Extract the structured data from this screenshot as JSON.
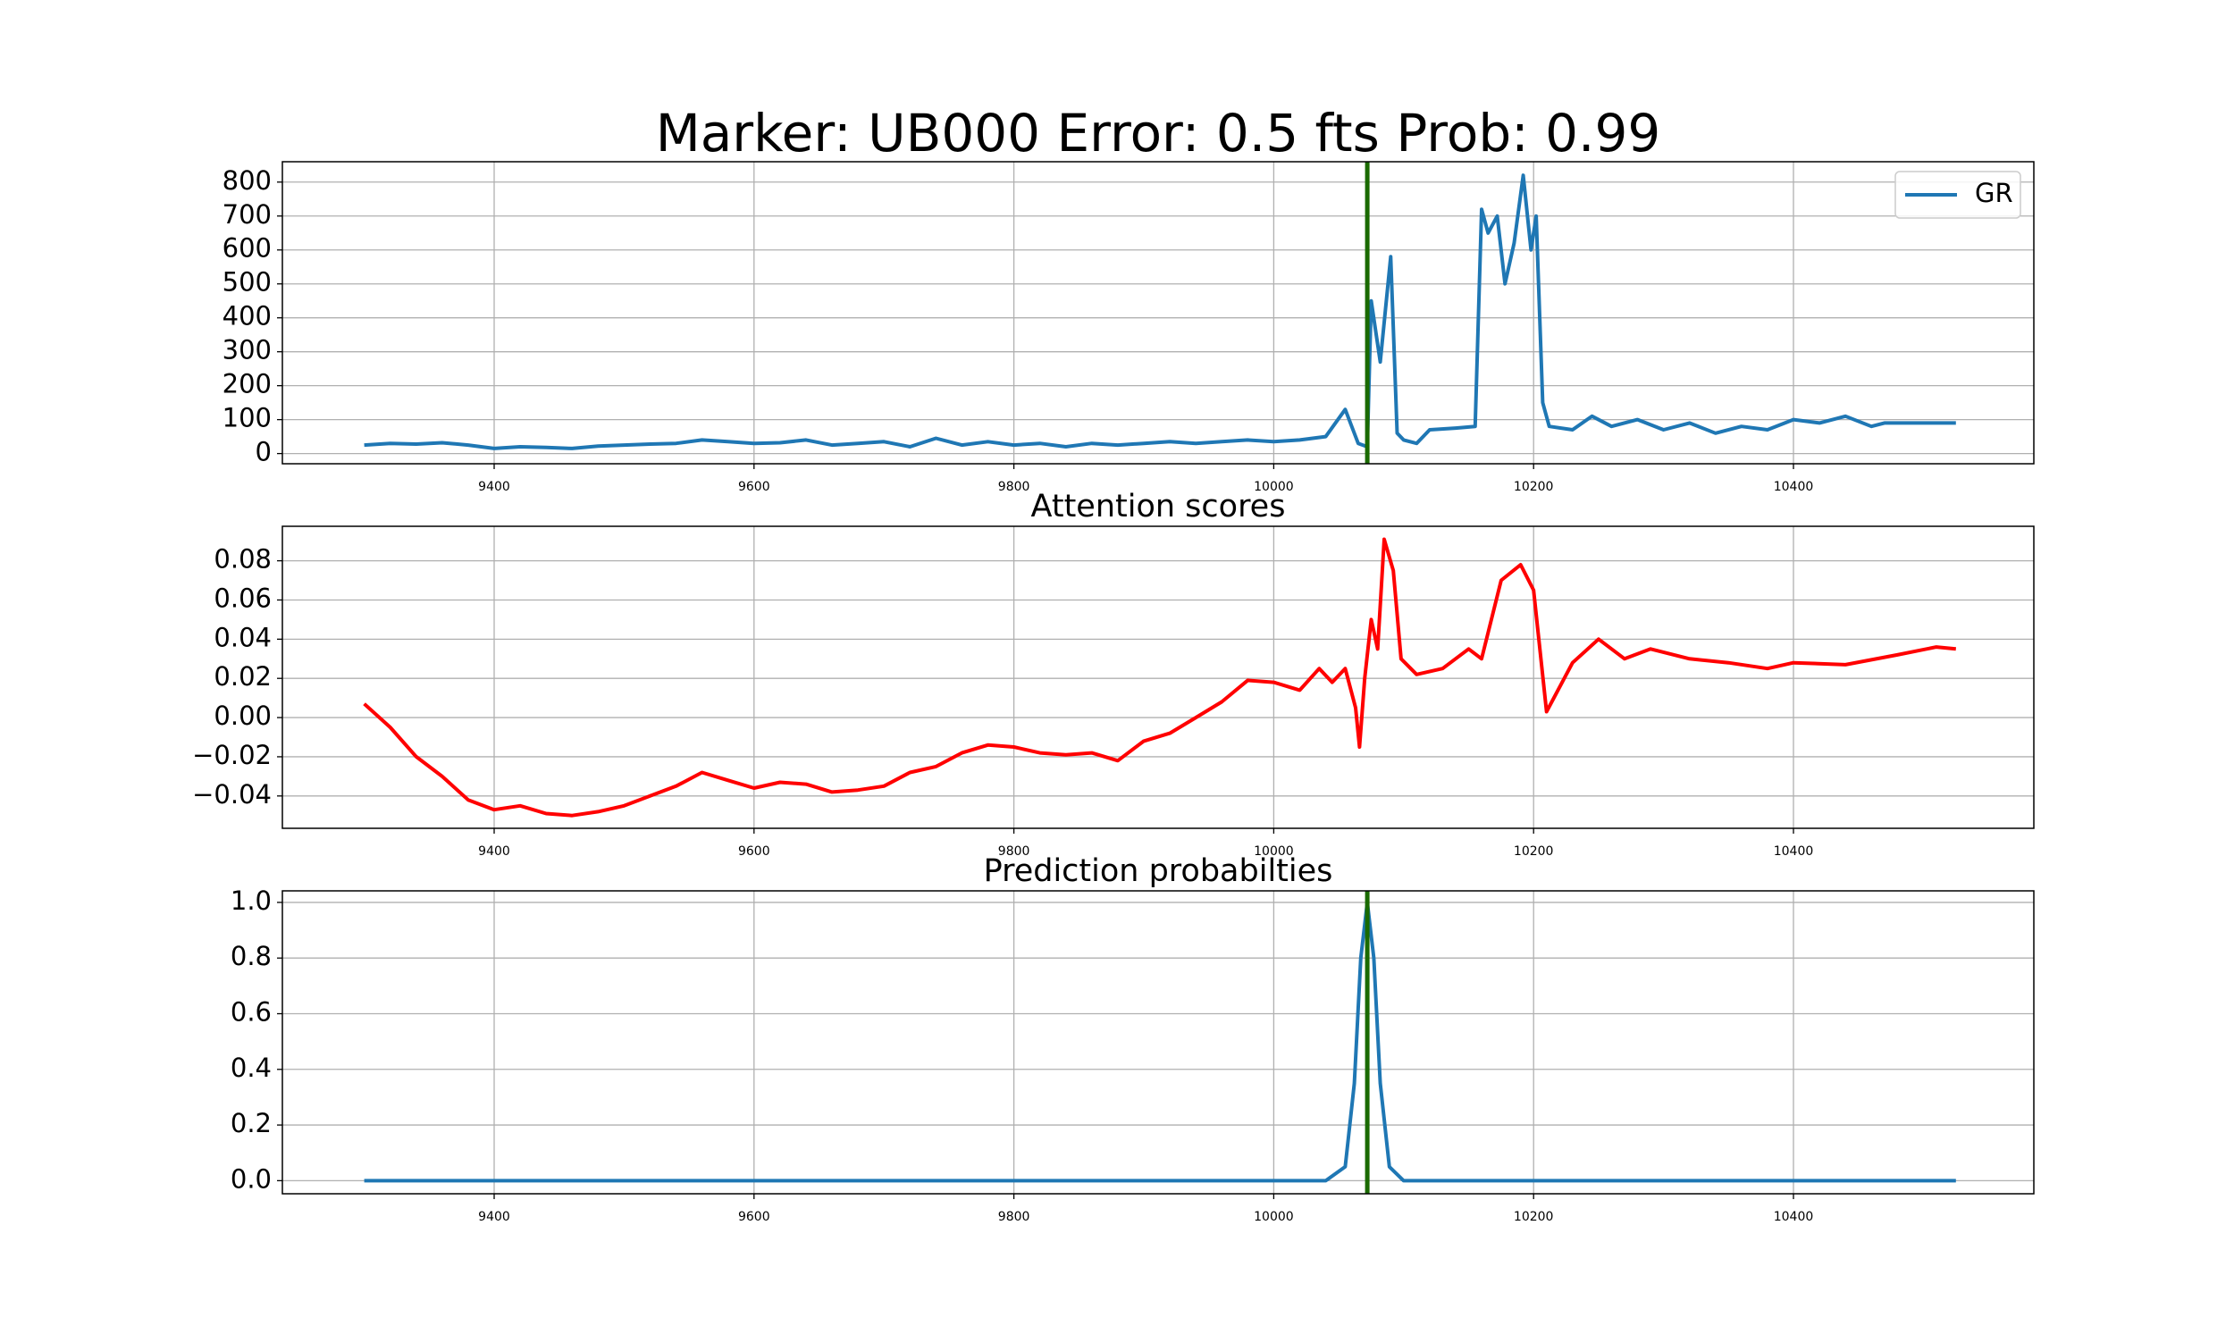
{
  "chart_data": [
    {
      "type": "line",
      "title": "Marker: UB000 Error: 0.5 fts  Prob: 0.99",
      "grid": true,
      "legend": "upper right",
      "x": [
        9300,
        9320,
        9340,
        9360,
        9380,
        9400,
        9420,
        9440,
        9460,
        9480,
        9500,
        9520,
        9540,
        9560,
        9580,
        9600,
        9620,
        9640,
        9660,
        9680,
        9700,
        9720,
        9740,
        9760,
        9780,
        9800,
        9820,
        9840,
        9860,
        9880,
        9900,
        9920,
        9940,
        9960,
        9980,
        10000,
        10020,
        10040,
        10055,
        10065,
        10072,
        10075,
        10082,
        10090,
        10095,
        10100,
        10110,
        10120,
        10140,
        10155,
        10160,
        10165,
        10172,
        10178,
        10185,
        10192,
        10198,
        10202,
        10207,
        10212,
        10230,
        10245,
        10260,
        10280,
        10300,
        10320,
        10340,
        10360,
        10380,
        10400,
        10420,
        10440,
        10460,
        10470,
        10525
      ],
      "series": [
        {
          "name": "GR",
          "color": "#1f77b4",
          "values": [
            25,
            30,
            28,
            32,
            25,
            15,
            20,
            18,
            15,
            22,
            25,
            28,
            30,
            40,
            35,
            30,
            32,
            40,
            25,
            30,
            35,
            20,
            45,
            25,
            35,
            25,
            30,
            20,
            30,
            25,
            30,
            35,
            30,
            35,
            40,
            35,
            40,
            50,
            130,
            30,
            20,
            450,
            270,
            580,
            60,
            40,
            30,
            70,
            75,
            80,
            720,
            650,
            700,
            500,
            620,
            820,
            600,
            700,
            150,
            80,
            70,
            110,
            80,
            100,
            70,
            90,
            60,
            80,
            70,
            100,
            90,
            110,
            80,
            90,
            90
          ]
        }
      ],
      "vlines": [
        {
          "x": 10072,
          "color": "#1a6a00"
        }
      ],
      "xlim": [
        9237,
        10585
      ],
      "xticks": [
        9400,
        9600,
        9800,
        10000,
        10200,
        10400
      ],
      "ylim": [
        -30,
        860
      ],
      "yticks": [
        0,
        100,
        200,
        300,
        400,
        500,
        600,
        700,
        800
      ]
    },
    {
      "type": "line",
      "title": "Attention scores",
      "grid": true,
      "x": [
        9300,
        9320,
        9340,
        9360,
        9380,
        9400,
        9420,
        9440,
        9460,
        9480,
        9500,
        9520,
        9540,
        9560,
        9580,
        9600,
        9620,
        9640,
        9660,
        9680,
        9700,
        9720,
        9740,
        9760,
        9780,
        9800,
        9820,
        9840,
        9860,
        9880,
        9900,
        9920,
        9940,
        9960,
        9980,
        10000,
        10020,
        10035,
        10045,
        10055,
        10063,
        10066,
        10070,
        10075,
        10080,
        10085,
        10092,
        10098,
        10110,
        10130,
        10150,
        10160,
        10175,
        10190,
        10200,
        10210,
        10230,
        10250,
        10270,
        10290,
        10320,
        10350,
        10380,
        10400,
        10440,
        10480,
        10510,
        10525
      ],
      "series": [
        {
          "color": "#ff0000",
          "values": [
            0.007,
            -0.005,
            -0.02,
            -0.03,
            -0.042,
            -0.047,
            -0.045,
            -0.049,
            -0.05,
            -0.048,
            -0.045,
            -0.04,
            -0.035,
            -0.028,
            -0.032,
            -0.036,
            -0.033,
            -0.034,
            -0.038,
            -0.037,
            -0.035,
            -0.028,
            -0.025,
            -0.018,
            -0.014,
            -0.015,
            -0.018,
            -0.019,
            -0.018,
            -0.022,
            -0.012,
            -0.008,
            0,
            0.008,
            0.019,
            0.018,
            0.014,
            0.025,
            0.018,
            0.025,
            0.005,
            -0.015,
            0.02,
            0.05,
            0.035,
            0.091,
            0.075,
            0.03,
            0.022,
            0.025,
            0.035,
            0.03,
            0.07,
            0.078,
            0.065,
            0.003,
            0.028,
            0.04,
            0.03,
            0.035,
            0.03,
            0.028,
            0.025,
            0.028,
            0.027,
            0.032,
            0.036,
            0.035
          ]
        }
      ],
      "xlim": [
        9237,
        10585
      ],
      "xticks": [
        9400,
        9600,
        9800,
        10000,
        10200,
        10400
      ],
      "ylim": [
        -0.0565,
        0.0976
      ],
      "yticks": [
        {
          "value": -0.04,
          "label": "−0.04"
        },
        {
          "value": -0.02,
          "label": "−0.02"
        },
        {
          "value": 0,
          "label": "0.00"
        },
        {
          "value": 0.02,
          "label": "0.02"
        },
        {
          "value": 0.04,
          "label": "0.04"
        },
        {
          "value": 0.06,
          "label": "0.06"
        },
        {
          "value": 0.08,
          "label": "0.08"
        }
      ]
    },
    {
      "type": "line",
      "title": "Prediction probabilties",
      "grid": true,
      "x": [
        9300,
        10040,
        10055,
        10062,
        10067,
        10072,
        10077,
        10082,
        10089,
        10100,
        10525
      ],
      "series": [
        {
          "color": "#1f77b4",
          "values": [
            0,
            0,
            0.05,
            0.35,
            0.8,
            1.0,
            0.8,
            0.35,
            0.05,
            0,
            0
          ]
        }
      ],
      "vlines": [
        {
          "x": 10072,
          "color": "#1a6a00"
        }
      ],
      "xlim": [
        9237,
        10585
      ],
      "xticks": [
        9400,
        9600,
        9800,
        10000,
        10200,
        10400
      ],
      "ylim": [
        -0.047,
        1.0415
      ],
      "yticks": [
        {
          "value": 0,
          "label": "0.0"
        },
        0.2,
        0.4,
        0.6,
        0.8,
        {
          "value": 1,
          "label": "1.0"
        }
      ]
    }
  ]
}
